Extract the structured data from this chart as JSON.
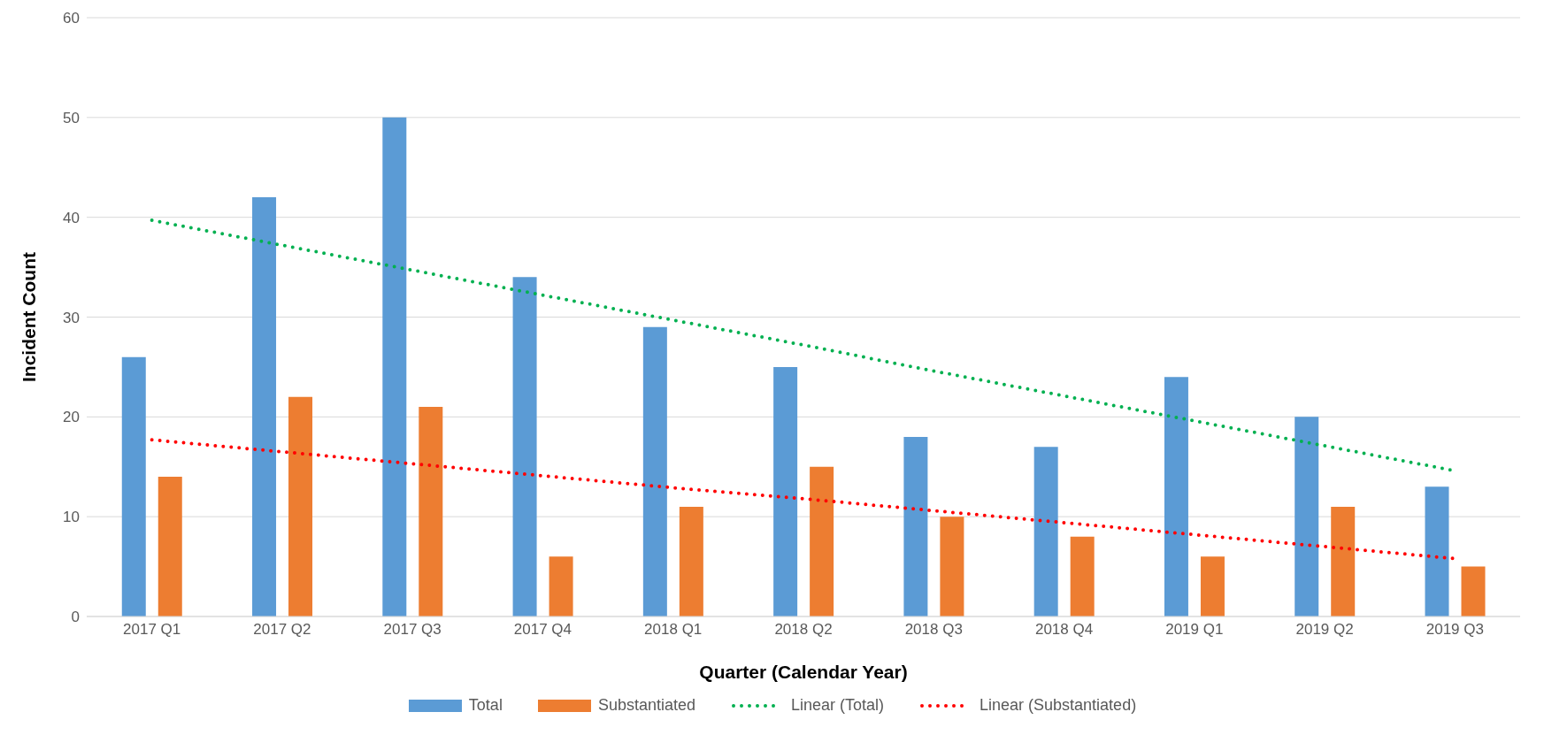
{
  "chart_data": {
    "type": "bar",
    "xlabel": "Quarter (Calendar Year)",
    "ylabel": "Incident Count",
    "categories": [
      "2017 Q1",
      "2017 Q2",
      "2017 Q3",
      "2017 Q4",
      "2018 Q1",
      "2018 Q2",
      "2018 Q3",
      "2018 Q4",
      "2019 Q1",
      "2019 Q2",
      "2019 Q3"
    ],
    "series": [
      {
        "name": "Total",
        "color": "#5b9bd5",
        "values": [
          26,
          42,
          50,
          34,
          29,
          25,
          18,
          17,
          24,
          20,
          13
        ]
      },
      {
        "name": "Substantiated",
        "color": "#ed7d31",
        "values": [
          14,
          22,
          21,
          6,
          11,
          15,
          10,
          8,
          6,
          11,
          5
        ]
      },
      {
        "name": "Linear (Total)",
        "type": "line",
        "line_style": "dotted",
        "color": "#00b050",
        "values": [
          39.7,
          37.2,
          34.7,
          32.2,
          29.7,
          27.2,
          24.6,
          22.1,
          19.6,
          17.1,
          14.6
        ]
      },
      {
        "name": "Linear (Substantiated)",
        "type": "line",
        "line_style": "dotted",
        "color": "#ff0000",
        "values": [
          17.7,
          16.5,
          15.3,
          14.1,
          12.9,
          11.8,
          10.6,
          9.4,
          8.2,
          7.0,
          5.8
        ]
      }
    ],
    "ylim": [
      0,
      60
    ],
    "yticks": [
      0,
      10,
      20,
      30,
      40,
      50,
      60
    ],
    "grid": "y",
    "legend": "bottom",
    "marker": "none"
  }
}
